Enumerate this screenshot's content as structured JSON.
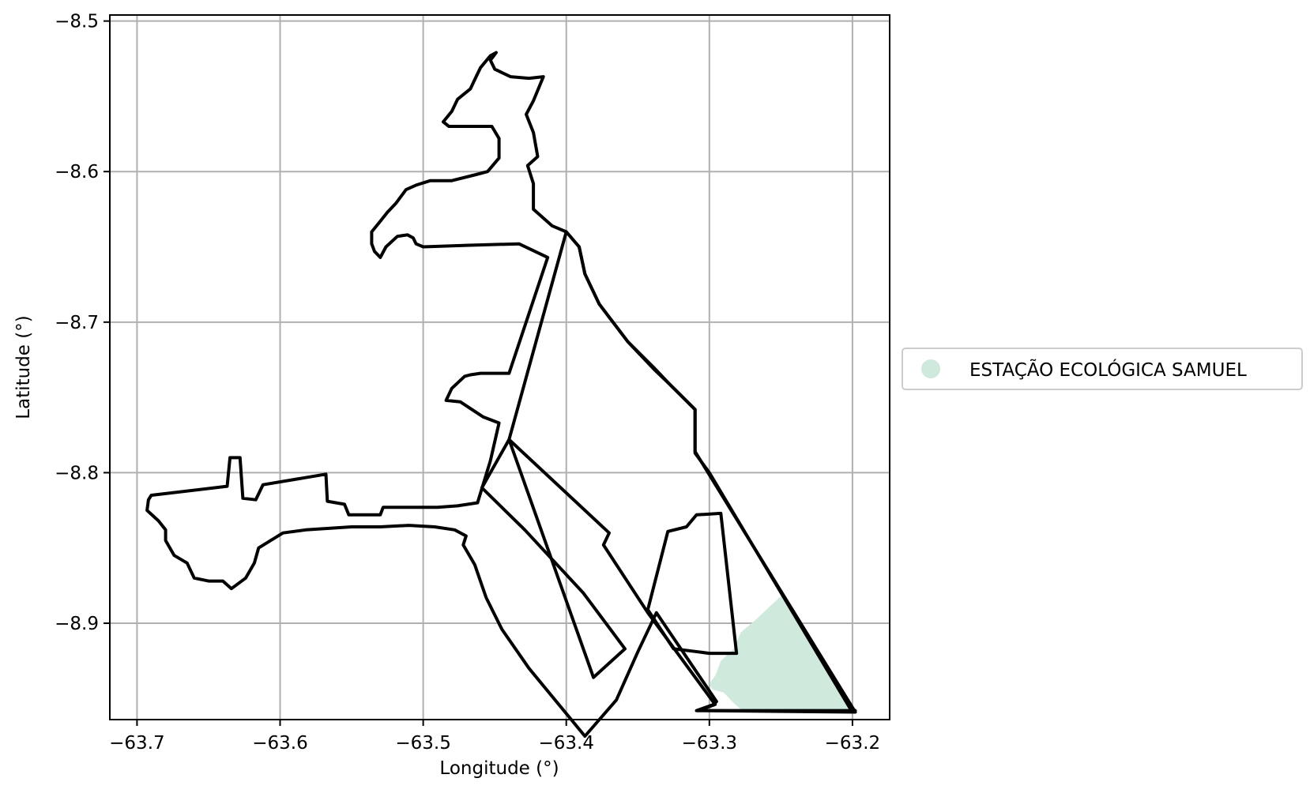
{
  "chart_data": {
    "type": "map",
    "xlabel": "Longitude (°)",
    "ylabel": "Latitude (°)",
    "xlim": [
      -63.719,
      -63.174
    ],
    "ylim": [
      -8.964,
      -8.496
    ],
    "xticks": [
      {
        "value": -63.7,
        "label": "−63.7"
      },
      {
        "value": -63.6,
        "label": "−63.6"
      },
      {
        "value": -63.5,
        "label": "−63.5"
      },
      {
        "value": -63.4,
        "label": "−63.4"
      },
      {
        "value": -63.3,
        "label": "−63.3"
      },
      {
        "value": -63.2,
        "label": "−63.2"
      }
    ],
    "yticks": [
      {
        "value": -8.5,
        "label": "−8.5"
      },
      {
        "value": -8.6,
        "label": "−8.6"
      },
      {
        "value": -8.7,
        "label": "−8.7"
      },
      {
        "value": -8.8,
        "label": "−8.8"
      },
      {
        "value": -8.9,
        "label": "−8.9"
      }
    ],
    "grid": true,
    "legend": {
      "placement": "right",
      "entries": [
        {
          "label": "ESTAÇÃO ECOLÓGICA SAMUEL",
          "color": "#cfe9dc",
          "marker": "circle"
        }
      ]
    },
    "filled_area": {
      "name": "ESTAÇÃO ECOLÓGICA SAMUEL",
      "color": "#cfe9dc",
      "polygon": [
        [
          -63.25,
          -8.882
        ],
        [
          -63.199,
          -8.959
        ],
        [
          -63.277,
          -8.958
        ],
        [
          -63.283,
          -8.953
        ],
        [
          -63.29,
          -8.946
        ],
        [
          -63.298,
          -8.944
        ],
        [
          -63.3,
          -8.94
        ],
        [
          -63.296,
          -8.935
        ],
        [
          -63.294,
          -8.93
        ],
        [
          -63.292,
          -8.925
        ],
        [
          -63.283,
          -8.917
        ],
        [
          -63.278,
          -8.906
        ],
        [
          -63.268,
          -8.898
        ],
        [
          -63.258,
          -8.889
        ]
      ]
    },
    "boundaries": [
      {
        "name": "outer-boundary",
        "polygon": [
          [
            -63.449,
            -8.521
          ],
          [
            -63.453,
            -8.526
          ],
          [
            -63.45,
            -8.532
          ],
          [
            -63.439,
            -8.537
          ],
          [
            -63.426,
            -8.538
          ],
          [
            -63.416,
            -8.537
          ],
          [
            -63.423,
            -8.553
          ],
          [
            -63.428,
            -8.562
          ],
          [
            -63.423,
            -8.574
          ],
          [
            -63.42,
            -8.59
          ],
          [
            -63.427,
            -8.596
          ],
          [
            -63.423,
            -8.608
          ],
          [
            -63.423,
            -8.625
          ],
          [
            -63.41,
            -8.636
          ],
          [
            -63.4,
            -8.64
          ],
          [
            -63.391,
            -8.65
          ],
          [
            -63.387,
            -8.668
          ],
          [
            -63.377,
            -8.688
          ],
          [
            -63.357,
            -8.713
          ],
          [
            -63.339,
            -8.731
          ],
          [
            -63.328,
            -8.741
          ],
          [
            -63.31,
            -8.758
          ],
          [
            -63.31,
            -8.786
          ],
          [
            -63.198,
            -8.959
          ],
          [
            -63.309,
            -8.958
          ],
          [
            -63.297,
            -8.954
          ],
          [
            -63.295,
            -8.952
          ],
          [
            -63.337,
            -8.893
          ],
          [
            -63.35,
            -8.919
          ],
          [
            -63.365,
            -8.951
          ],
          [
            -63.387,
            -8.975
          ],
          [
            -63.426,
            -8.93
          ],
          [
            -63.445,
            -8.904
          ],
          [
            -63.456,
            -8.883
          ],
          [
            -63.464,
            -8.861
          ],
          [
            -63.472,
            -8.848
          ],
          [
            -63.47,
            -8.842
          ],
          [
            -63.478,
            -8.838
          ],
          [
            -63.492,
            -8.836
          ],
          [
            -63.51,
            -8.835
          ],
          [
            -63.53,
            -8.836
          ],
          [
            -63.55,
            -8.836
          ],
          [
            -63.582,
            -8.838
          ],
          [
            -63.598,
            -8.84
          ],
          [
            -63.615,
            -8.85
          ],
          [
            -63.618,
            -8.86
          ],
          [
            -63.624,
            -8.87
          ],
          [
            -63.634,
            -8.877
          ],
          [
            -63.64,
            -8.872
          ],
          [
            -63.65,
            -8.872
          ],
          [
            -63.66,
            -8.87
          ],
          [
            -63.665,
            -8.86
          ],
          [
            -63.674,
            -8.855
          ],
          [
            -63.68,
            -8.845
          ],
          [
            -63.68,
            -8.838
          ],
          [
            -63.685,
            -8.832
          ],
          [
            -63.693,
            -8.825
          ],
          [
            -63.692,
            -8.818
          ],
          [
            -63.69,
            -8.815
          ],
          [
            -63.637,
            -8.809
          ],
          [
            -63.635,
            -8.79
          ],
          [
            -63.628,
            -8.79
          ],
          [
            -63.626,
            -8.817
          ],
          [
            -63.617,
            -8.818
          ],
          [
            -63.612,
            -8.808
          ],
          [
            -63.568,
            -8.801
          ],
          [
            -63.567,
            -8.819
          ],
          [
            -63.555,
            -8.821
          ],
          [
            -63.552,
            -8.828
          ],
          [
            -63.53,
            -8.828
          ],
          [
            -63.528,
            -8.823
          ],
          [
            -63.518,
            -8.823
          ],
          [
            -63.505,
            -8.823
          ],
          [
            -63.49,
            -8.823
          ],
          [
            -63.476,
            -8.822
          ],
          [
            -63.462,
            -8.82
          ],
          [
            -63.453,
            -8.792
          ],
          [
            -63.447,
            -8.767
          ],
          [
            -63.458,
            -8.763
          ],
          [
            -63.474,
            -8.753
          ],
          [
            -63.484,
            -8.752
          ],
          [
            -63.48,
            -8.744
          ],
          [
            -63.471,
            -8.736
          ],
          [
            -63.467,
            -8.735
          ],
          [
            -63.46,
            -8.734
          ],
          [
            -63.44,
            -8.734
          ],
          [
            -63.413,
            -8.657
          ],
          [
            -63.433,
            -8.648
          ],
          [
            -63.47,
            -8.649
          ],
          [
            -63.5,
            -8.65
          ],
          [
            -63.505,
            -8.648
          ],
          [
            -63.507,
            -8.644
          ],
          [
            -63.511,
            -8.642
          ],
          [
            -63.518,
            -8.643
          ],
          [
            -63.526,
            -8.65
          ],
          [
            -63.53,
            -8.657
          ],
          [
            -63.534,
            -8.653
          ],
          [
            -63.536,
            -8.648
          ],
          [
            -63.536,
            -8.64
          ],
          [
            -63.53,
            -8.633
          ],
          [
            -63.525,
            -8.627
          ],
          [
            -63.519,
            -8.621
          ],
          [
            -63.512,
            -8.612
          ],
          [
            -63.505,
            -8.609
          ],
          [
            -63.495,
            -8.606
          ],
          [
            -63.48,
            -8.606
          ],
          [
            -63.463,
            -8.602
          ],
          [
            -63.455,
            -8.6
          ],
          [
            -63.447,
            -8.591
          ],
          [
            -63.447,
            -8.578
          ],
          [
            -63.452,
            -8.57
          ],
          [
            -63.468,
            -8.57
          ],
          [
            -63.482,
            -8.57
          ],
          [
            -63.486,
            -8.567
          ],
          [
            -63.48,
            -8.56
          ],
          [
            -63.476,
            -8.552
          ],
          [
            -63.467,
            -8.545
          ],
          [
            -63.463,
            -8.537
          ],
          [
            -63.46,
            -8.531
          ],
          [
            -63.453,
            -8.523
          ]
        ]
      },
      {
        "name": "inner-parcel-a",
        "polygon": [
          [
            -63.44,
            -8.778
          ],
          [
            -63.37,
            -8.84
          ],
          [
            -63.374,
            -8.848
          ],
          [
            -63.343,
            -8.893
          ],
          [
            -63.296,
            -8.954
          ],
          [
            -63.308,
            -8.958
          ],
          [
            -63.198,
            -8.958
          ],
          [
            -63.202,
            -8.956
          ],
          [
            -63.3,
            -8.8
          ],
          [
            -63.31,
            -8.787
          ],
          [
            -63.31,
            -8.758
          ],
          [
            -63.328,
            -8.741
          ],
          [
            -63.339,
            -8.73
          ],
          [
            -63.357,
            -8.713
          ],
          [
            -63.377,
            -8.688
          ],
          [
            -63.387,
            -8.668
          ],
          [
            -63.391,
            -8.65
          ],
          [
            -63.4,
            -8.64
          ]
        ]
      },
      {
        "name": "inner-parcel-b",
        "polygon": [
          [
            -63.44,
            -8.778
          ],
          [
            -63.459,
            -8.81
          ],
          [
            -63.429,
            -8.838
          ],
          [
            -63.388,
            -8.88
          ],
          [
            -63.359,
            -8.917
          ],
          [
            -63.381,
            -8.936
          ]
        ]
      },
      {
        "name": "inner-parcel-c",
        "polygon": [
          [
            -63.343,
            -8.891
          ],
          [
            -63.325,
            -8.917
          ],
          [
            -63.308,
            -8.919
          ],
          [
            -63.3,
            -8.92
          ],
          [
            -63.281,
            -8.92
          ],
          [
            -63.292,
            -8.827
          ],
          [
            -63.309,
            -8.828
          ],
          [
            -63.316,
            -8.836
          ],
          [
            -63.329,
            -8.839
          ]
        ]
      }
    ]
  }
}
